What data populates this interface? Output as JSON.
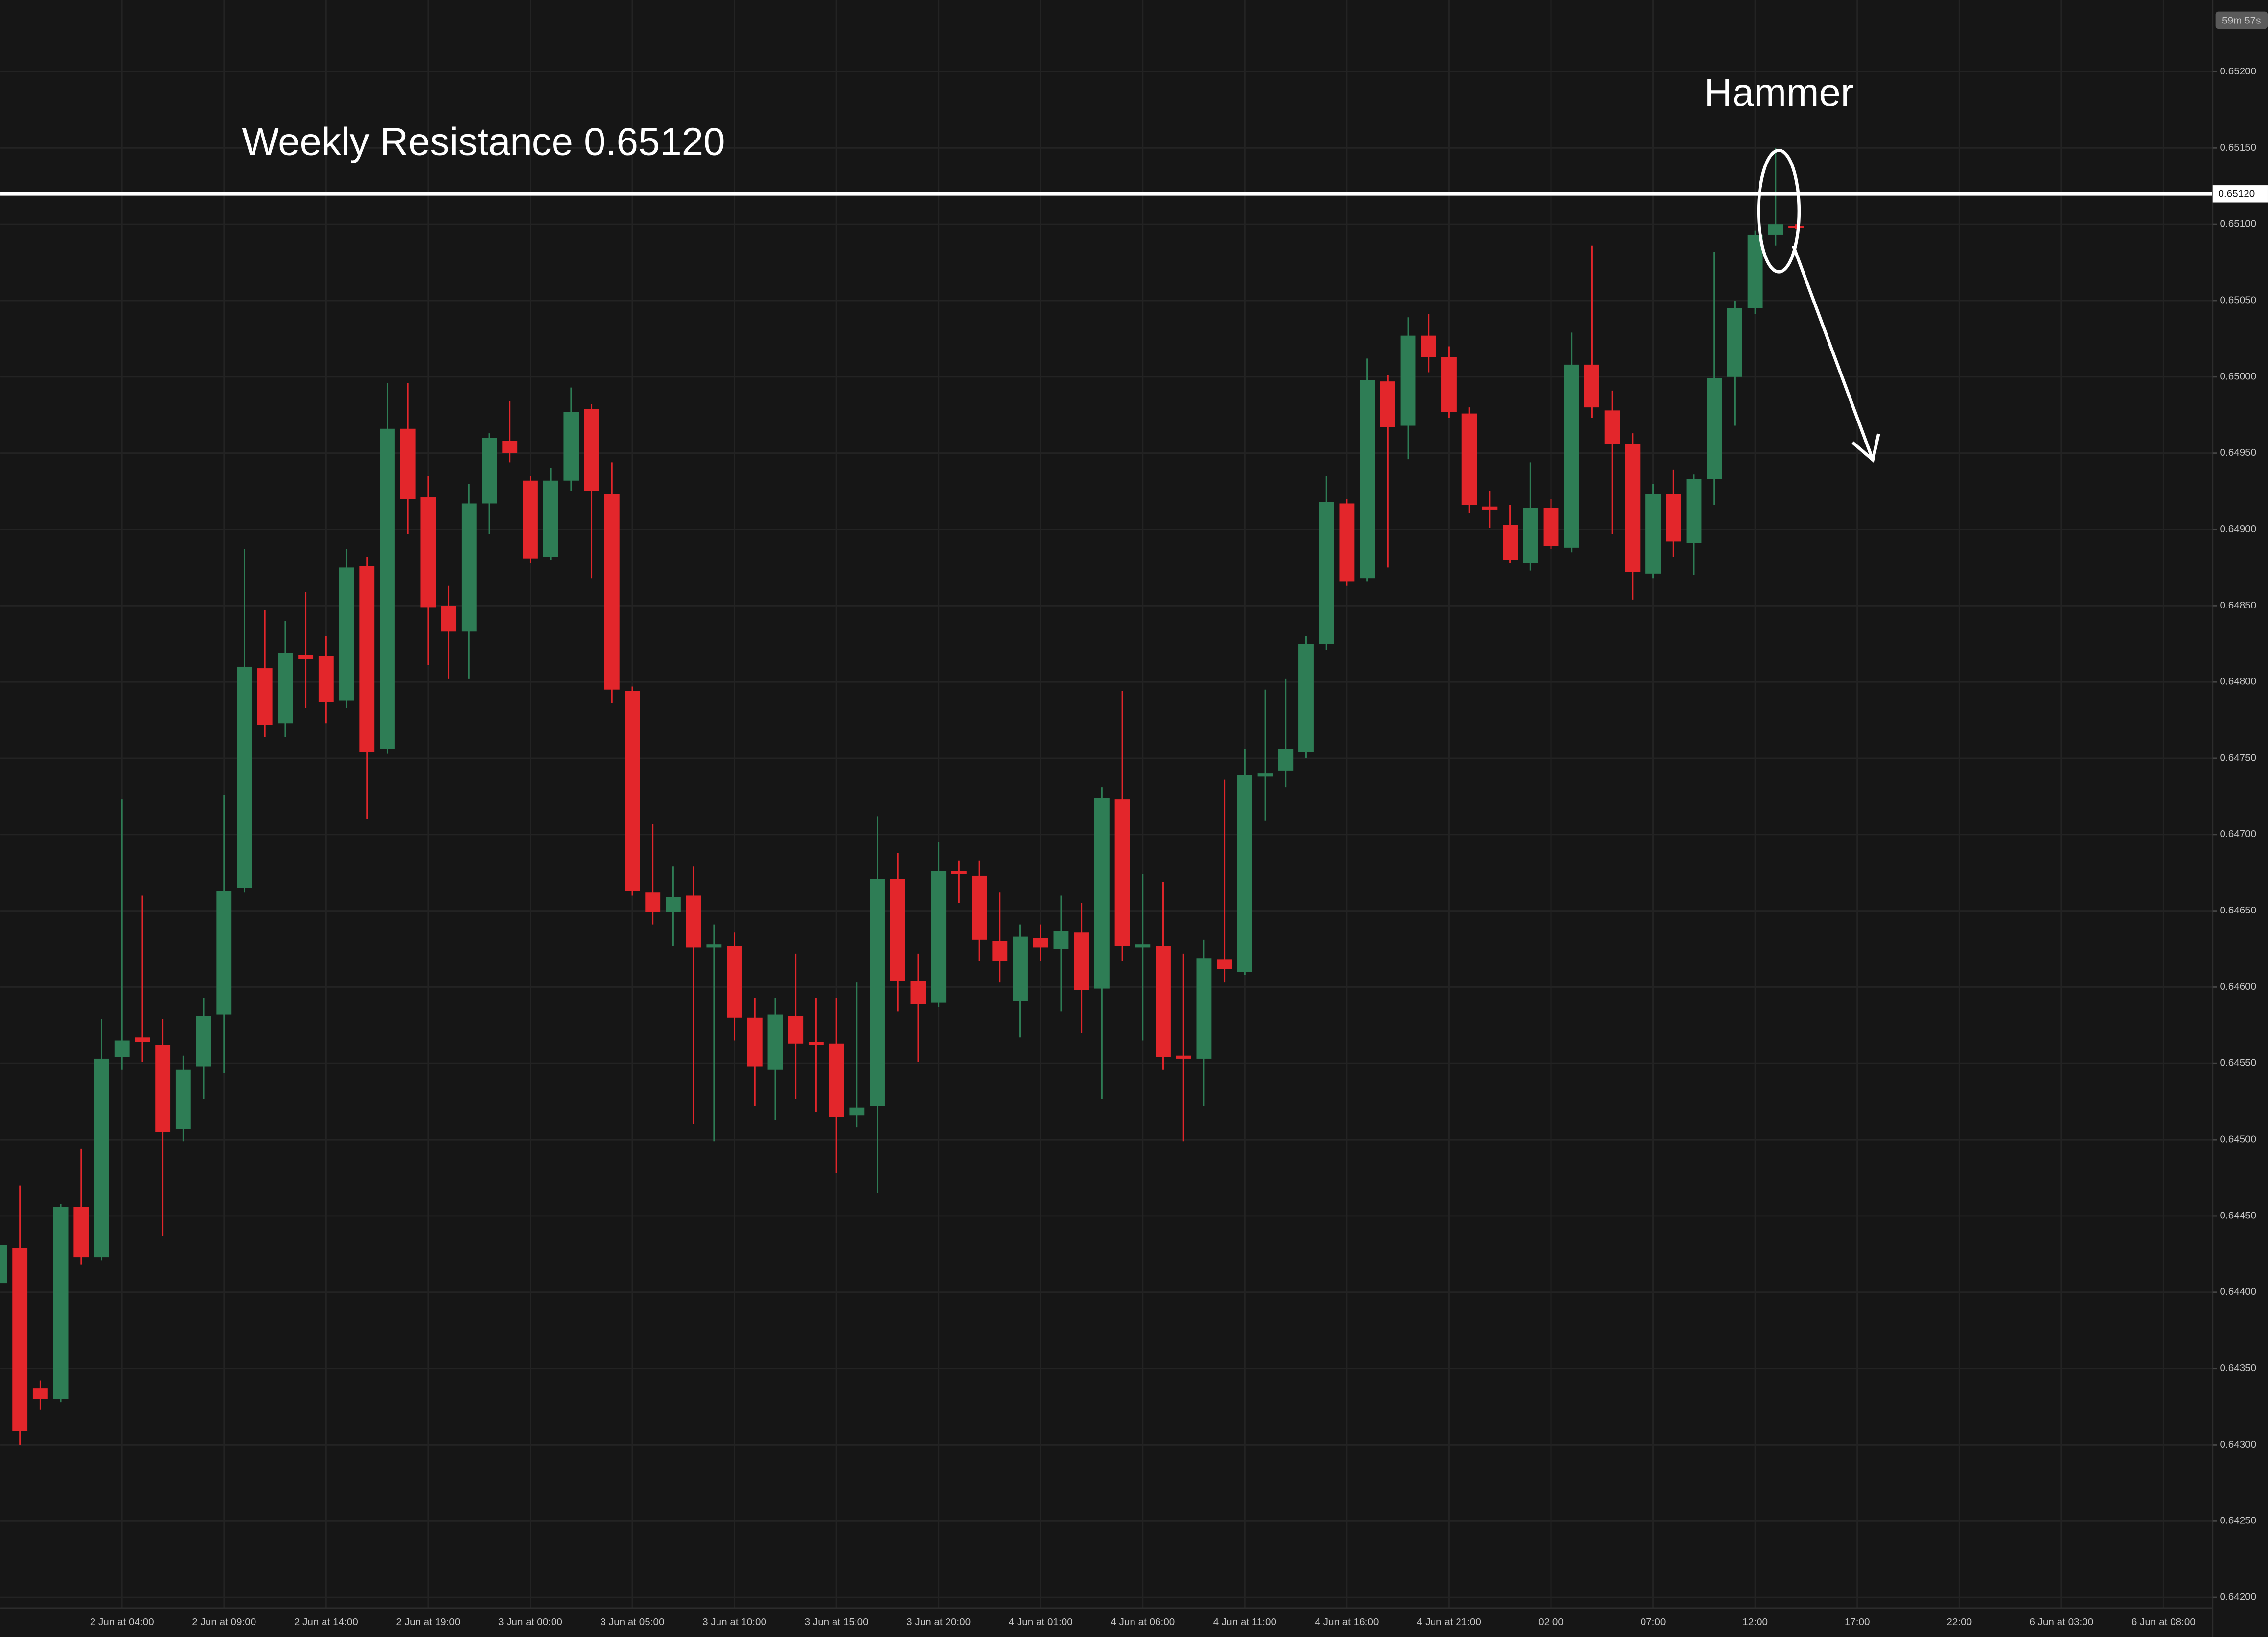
{
  "chart_data": {
    "type": "candlestick",
    "title": "Weekly Resistance 0.65120",
    "annotation": "Hammer",
    "countdown": "59m 57s",
    "resistance": {
      "value": 0.6512,
      "label": "0.65120"
    },
    "up_color": "#2e7d55",
    "down_color": "#e3262b",
    "grid": true,
    "ylim": [
      0.64193,
      0.65247
    ],
    "yticks": [
      {
        "value": 0.642,
        "label": "0.64200"
      },
      {
        "value": 0.6425,
        "label": "0.64250"
      },
      {
        "value": 0.643,
        "label": "0.64300"
      },
      {
        "value": 0.6435,
        "label": "0.64350"
      },
      {
        "value": 0.644,
        "label": "0.64400"
      },
      {
        "value": 0.6445,
        "label": "0.64450"
      },
      {
        "value": 0.645,
        "label": "0.64500"
      },
      {
        "value": 0.6455,
        "label": "0.64550"
      },
      {
        "value": 0.646,
        "label": "0.64600"
      },
      {
        "value": 0.6465,
        "label": "0.64650"
      },
      {
        "value": 0.647,
        "label": "0.64700"
      },
      {
        "value": 0.6475,
        "label": "0.64750"
      },
      {
        "value": 0.648,
        "label": "0.64800"
      },
      {
        "value": 0.6485,
        "label": "0.64850"
      },
      {
        "value": 0.649,
        "label": "0.64900"
      },
      {
        "value": 0.6495,
        "label": "0.64950"
      },
      {
        "value": 0.65,
        "label": "0.65000"
      },
      {
        "value": 0.6505,
        "label": "0.65050"
      },
      {
        "value": 0.651,
        "label": "0.65100"
      },
      {
        "value": 0.6515,
        "label": "0.65150"
      },
      {
        "value": 0.652,
        "label": "0.65200"
      }
    ],
    "categories": [
      null,
      null,
      null,
      null,
      null,
      null,
      "2 Jun at 04:00",
      null,
      null,
      null,
      null,
      "2 Jun at 09:00",
      null,
      null,
      null,
      null,
      "2 Jun at 14:00",
      null,
      null,
      null,
      null,
      "2 Jun at 19:00",
      null,
      null,
      null,
      null,
      "3 Jun at 00:00",
      null,
      null,
      null,
      null,
      "3 Jun at 05:00",
      null,
      null,
      null,
      null,
      "3 Jun at 10:00",
      null,
      null,
      null,
      null,
      "3 Jun at 15:00",
      null,
      null,
      null,
      null,
      "3 Jun at 20:00",
      null,
      null,
      null,
      null,
      "4 Jun at 01:00",
      null,
      null,
      null,
      null,
      "4 Jun at 06:00",
      null,
      null,
      null,
      null,
      "4 Jun at 11:00",
      null,
      null,
      null,
      null,
      "4 Jun at 16:00",
      null,
      null,
      null,
      null,
      "4 Jun at 21:00",
      null,
      null,
      null,
      null,
      "02:00",
      null,
      null,
      null,
      null,
      "07:00",
      null,
      null,
      null,
      null,
      "12:00",
      null,
      null,
      null,
      null,
      "17:00",
      null,
      null,
      null,
      null,
      "22:00",
      null,
      null,
      null,
      null,
      "6 Jun at 03:00",
      null,
      null,
      null,
      null,
      "6 Jun at 08:00",
      null
    ],
    "open": [
      0.64406,
      0.64429,
      0.64337,
      0.6433,
      0.64456,
      0.64423,
      0.64554,
      0.64567,
      0.64562,
      0.64507,
      0.64548,
      0.64582,
      0.64665,
      0.64809,
      0.64773,
      0.64818,
      0.64817,
      0.64788,
      0.64876,
      0.64756,
      0.64966,
      0.64921,
      0.6485,
      0.64833,
      0.64917,
      0.64958,
      0.64932,
      0.64882,
      0.64932,
      0.64979,
      0.64923,
      0.64794,
      0.64662,
      0.64649,
      0.6466,
      0.64626,
      0.64627,
      0.6458,
      0.64546,
      0.64581,
      0.64564,
      0.64563,
      0.64516,
      0.64522,
      0.64671,
      0.64604,
      0.6459,
      0.64676,
      0.64673,
      0.6463,
      0.64591,
      0.64632,
      0.64625,
      0.64636,
      0.64599,
      0.64723,
      0.64626,
      0.64627,
      0.64555,
      0.64553,
      0.64618,
      0.6461,
      0.64738,
      0.64742,
      0.64754,
      0.64825,
      0.64917,
      0.64868,
      0.64997,
      0.64968,
      0.65027,
      0.65013,
      0.64976,
      0.64915,
      0.64903,
      0.64878,
      0.64914,
      0.64888,
      0.65008,
      0.64978,
      0.64956,
      0.64871,
      0.64923,
      0.64891,
      0.64933,
      0.65,
      0.65045,
      0.65093,
      0.65099,
      null,
      null,
      null,
      null,
      null,
      null,
      null,
      null,
      null,
      null,
      null,
      null,
      null,
      null,
      null,
      null,
      null,
      null,
      null
    ],
    "high": [
      0.64438,
      0.6447,
      0.64342,
      0.64458,
      0.64494,
      0.64579,
      0.64723,
      0.6466,
      0.64579,
      0.64555,
      0.64593,
      0.64726,
      0.64887,
      0.64847,
      0.6484,
      0.64859,
      0.6483,
      0.64887,
      0.64882,
      0.64996,
      0.64996,
      0.64935,
      0.64863,
      0.6493,
      0.64963,
      0.64984,
      0.64935,
      0.6494,
      0.64993,
      0.64982,
      0.64944,
      0.64797,
      0.64707,
      0.64679,
      0.64679,
      0.64641,
      0.64636,
      0.64593,
      0.64593,
      0.64622,
      0.64593,
      0.64593,
      0.64603,
      0.64712,
      0.64688,
      0.64622,
      0.64695,
      0.64683,
      0.64683,
      0.64662,
      0.64641,
      0.64641,
      0.6466,
      0.64655,
      0.64731,
      0.64794,
      0.64674,
      0.64669,
      0.64622,
      0.64631,
      0.64736,
      0.64756,
      0.64795,
      0.64802,
      0.6483,
      0.64935,
      0.6492,
      0.65012,
      0.65001,
      0.65039,
      0.65041,
      0.6502,
      0.6498,
      0.64925,
      0.64916,
      0.64944,
      0.6492,
      0.65029,
      0.65086,
      0.64991,
      0.64963,
      0.6493,
      0.64939,
      0.64936,
      0.65082,
      0.6505,
      0.65096,
      0.6515,
      0.651,
      null,
      null,
      null,
      null,
      null,
      null,
      null,
      null,
      null,
      null,
      null,
      null,
      null,
      null,
      null,
      null,
      null,
      null,
      null
    ],
    "low": [
      0.6439,
      0.643,
      0.64323,
      0.64328,
      0.64418,
      0.64421,
      0.64546,
      0.64551,
      0.64437,
      0.64499,
      0.64527,
      0.64544,
      0.64662,
      0.64764,
      0.64764,
      0.64783,
      0.64773,
      0.64783,
      0.6471,
      0.64753,
      0.64897,
      0.64811,
      0.64802,
      0.64802,
      0.64897,
      0.64944,
      0.64878,
      0.6488,
      0.64925,
      0.64868,
      0.64786,
      0.6466,
      0.64641,
      0.64627,
      0.6451,
      0.64499,
      0.64565,
      0.64522,
      0.64513,
      0.64527,
      0.64518,
      0.64478,
      0.64508,
      0.64465,
      0.64584,
      0.64551,
      0.64587,
      0.64655,
      0.64617,
      0.64603,
      0.64567,
      0.64617,
      0.64584,
      0.6457,
      0.64527,
      0.64617,
      0.64565,
      0.64546,
      0.64499,
      0.64522,
      0.64603,
      0.64608,
      0.64709,
      0.64731,
      0.6475,
      0.64821,
      0.64863,
      0.64866,
      0.64875,
      0.64946,
      0.65003,
      0.64973,
      0.64911,
      0.64901,
      0.64878,
      0.64873,
      0.64887,
      0.64885,
      0.64973,
      0.64897,
      0.64854,
      0.64868,
      0.64882,
      0.6487,
      0.64916,
      0.64968,
      0.65041,
      0.65086,
      0.65097,
      null,
      null,
      null,
      null,
      null,
      null,
      null,
      null,
      null,
      null,
      null,
      null,
      null,
      null,
      null,
      null,
      null,
      null,
      null
    ],
    "close": [
      0.64431,
      0.64309,
      0.6433,
      0.64456,
      0.64423,
      0.64553,
      0.64565,
      0.64564,
      0.64505,
      0.64546,
      0.64581,
      0.64663,
      0.6481,
      0.64772,
      0.64819,
      0.64815,
      0.64787,
      0.64875,
      0.64754,
      0.64966,
      0.6492,
      0.64849,
      0.64833,
      0.64917,
      0.6496,
      0.6495,
      0.64881,
      0.64932,
      0.64977,
      0.64925,
      0.64795,
      0.64663,
      0.64649,
      0.64659,
      0.64626,
      0.64628,
      0.6458,
      0.64548,
      0.64582,
      0.64563,
      0.64562,
      0.64515,
      0.64521,
      0.64671,
      0.64604,
      0.64589,
      0.64676,
      0.64674,
      0.64631,
      0.64617,
      0.64633,
      0.64626,
      0.64637,
      0.64598,
      0.64724,
      0.64627,
      0.64628,
      0.64554,
      0.64553,
      0.64619,
      0.64612,
      0.64739,
      0.6474,
      0.64756,
      0.64825,
      0.64918,
      0.64866,
      0.64998,
      0.64967,
      0.65027,
      0.65013,
      0.64977,
      0.64916,
      0.64913,
      0.6488,
      0.64914,
      0.64889,
      0.65008,
      0.6498,
      0.64956,
      0.64872,
      0.64923,
      0.64892,
      0.64933,
      0.64999,
      0.65045,
      0.65093,
      0.651,
      0.65098,
      null,
      null,
      null,
      null,
      null,
      null,
      null,
      null,
      null,
      null,
      null,
      null,
      null,
      null,
      null,
      null,
      null,
      null,
      null
    ]
  }
}
